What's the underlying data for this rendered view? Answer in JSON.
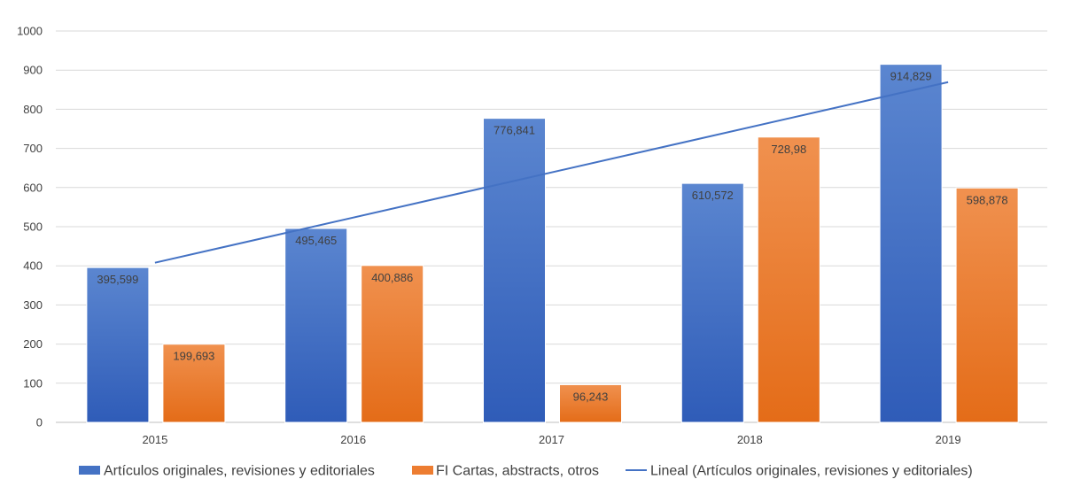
{
  "chart_data": {
    "type": "bar",
    "categories": [
      "2015",
      "2016",
      "2017",
      "2018",
      "2019"
    ],
    "series": [
      {
        "name": "Artículos originales, revisiones y editoriales",
        "values": [
          395.599,
          495.465,
          776.841,
          610.572,
          914.829
        ],
        "labels": [
          "395,599",
          "495,465",
          "776,841",
          "610,572",
          "914,829"
        ],
        "color": "#4472C4"
      },
      {
        "name": "FI Cartas, abstracts, otros",
        "values": [
          199.693,
          400.886,
          96.243,
          728.98,
          598.878
        ],
        "labels": [
          "199,693",
          "400,886",
          "96,243",
          "728,98",
          "598,878"
        ],
        "color": "#ED7D31"
      }
    ],
    "trendline": {
      "name": "Lineal (Artículos originales, revisiones y editoriales)",
      "type": "linear",
      "of_series": 0,
      "color": "#4472C4"
    },
    "y_ticks": [
      "0",
      "100",
      "200",
      "300",
      "400",
      "500",
      "600",
      "700",
      "800",
      "900",
      "1000"
    ],
    "ylim": [
      0,
      1000
    ],
    "grid": true,
    "legend_position": "bottom"
  }
}
